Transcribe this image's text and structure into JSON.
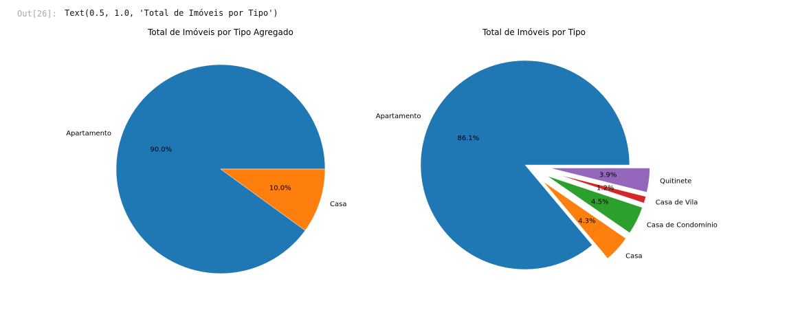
{
  "cell_output": {
    "prompt": "Out[26]:",
    "text": "Text(0.5, 1.0, 'Total de Imóveis por Tipo')"
  },
  "colors": {
    "blue": "#1f77b4",
    "orange": "#ff7f0e",
    "green": "#2ca02c",
    "red": "#d62728",
    "purple": "#9467bd"
  },
  "chart_data": [
    {
      "type": "pie",
      "title": "Total de Imóveis por Tipo Agregado",
      "slices": [
        {
          "label": "Apartamento",
          "value": 90.0,
          "pct_label": "90.0%",
          "color": "#1f77b4"
        },
        {
          "label": "Casa",
          "value": 10.0,
          "pct_label": "10.0%",
          "color": "#ff7f0e"
        }
      ]
    },
    {
      "type": "pie",
      "title": "Total de Imóveis por Tipo",
      "slices": [
        {
          "label": "Apartamento",
          "value": 86.1,
          "pct_label": "86.1%",
          "color": "#1f77b4"
        },
        {
          "label": "Casa",
          "value": 4.3,
          "pct_label": "4.3%",
          "color": "#ff7f0e",
          "exploded": true
        },
        {
          "label": "Casa de Condomínio",
          "value": 4.5,
          "pct_label": "4.5%",
          "color": "#2ca02c",
          "exploded": true
        },
        {
          "label": "Casa de Vila",
          "value": 1.2,
          "pct_label": "1.2%",
          "color": "#d62728",
          "exploded": true
        },
        {
          "label": "Quitinete",
          "value": 3.9,
          "pct_label": "3.9%",
          "color": "#9467bd",
          "exploded": true
        }
      ]
    }
  ]
}
